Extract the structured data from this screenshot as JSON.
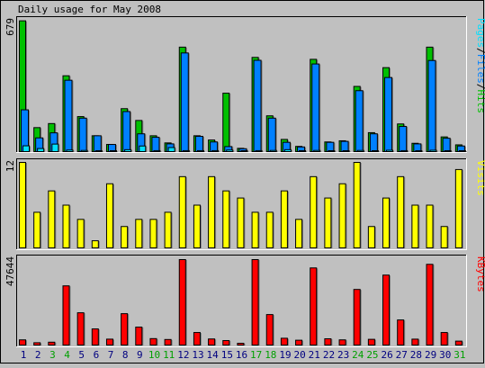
{
  "chart_data": [
    {
      "type": "bar",
      "title": "Daily usage for May 2008",
      "categories": [
        "1",
        "2",
        "3",
        "4",
        "5",
        "6",
        "7",
        "8",
        "9",
        "10",
        "11",
        "12",
        "13",
        "14",
        "15",
        "16",
        "17",
        "18",
        "19",
        "20",
        "21",
        "22",
        "23",
        "24",
        "25",
        "26",
        "27",
        "28",
        "29",
        "30",
        "31"
      ],
      "weekend_days": [
        "3",
        "4",
        "10",
        "11",
        "17",
        "18",
        "24",
        "25",
        "31"
      ],
      "y_max_label": "679",
      "ylim": [
        0,
        679
      ],
      "legend_words": [
        "Pages",
        "Files",
        "Hits"
      ],
      "series": [
        {
          "name": "Hits",
          "color": "#00c000",
          "values": [
            676,
            124,
            145,
            392,
            181,
            82,
            37,
            222,
            161,
            82,
            45,
            540,
            82,
            60,
            302,
            17,
            487,
            185,
            63,
            27,
            477,
            50,
            56,
            337,
            98,
            434,
            143,
            43,
            540,
            76,
            35
          ]
        },
        {
          "name": "Files",
          "color": "#0080ff",
          "values": [
            216,
            71,
            97,
            369,
            173,
            82,
            37,
            207,
            92,
            74,
            40,
            510,
            79,
            50,
            26,
            15,
            472,
            173,
            48,
            24,
            453,
            48,
            53,
            315,
            92,
            383,
            130,
            40,
            471,
            69,
            29
          ]
        },
        {
          "name": "Pages",
          "color": "#00e0ff",
          "values": [
            30,
            16,
            39,
            8,
            6,
            3,
            2,
            10,
            29,
            5,
            21,
            5,
            5,
            5,
            8,
            1,
            5,
            6,
            10,
            2,
            6,
            4,
            4,
            6,
            3,
            7,
            5,
            3,
            7,
            3,
            2
          ]
        }
      ]
    },
    {
      "type": "bar",
      "categories": [
        "1",
        "2",
        "3",
        "4",
        "5",
        "6",
        "7",
        "8",
        "9",
        "10",
        "11",
        "12",
        "13",
        "14",
        "15",
        "16",
        "17",
        "18",
        "19",
        "20",
        "21",
        "22",
        "23",
        "24",
        "25",
        "26",
        "27",
        "28",
        "29",
        "30",
        "31"
      ],
      "y_max_label": "12",
      "ylim": [
        0,
        12
      ],
      "legend_words": [
        "Visits"
      ],
      "series": [
        {
          "name": "Visits",
          "color": "#ffff00",
          "values": [
            12,
            5,
            8,
            6,
            4,
            1,
            9,
            3,
            4,
            4,
            5,
            10,
            6,
            10,
            8,
            7,
            5,
            5,
            8,
            4,
            10,
            7,
            9,
            12,
            3,
            7,
            10,
            6,
            6,
            3,
            11
          ]
        }
      ]
    },
    {
      "type": "bar",
      "categories": [
        "1",
        "2",
        "3",
        "4",
        "5",
        "6",
        "7",
        "8",
        "9",
        "10",
        "11",
        "12",
        "13",
        "14",
        "15",
        "16",
        "17",
        "18",
        "19",
        "20",
        "21",
        "22",
        "23",
        "24",
        "25",
        "26",
        "27",
        "28",
        "29",
        "30",
        "31"
      ],
      "y_max_label": "47644",
      "ylim": [
        0,
        47644
      ],
      "legend_words": [
        "KBytes"
      ],
      "series": [
        {
          "name": "KBytes",
          "color": "#ff0000",
          "values": [
            2900,
            1300,
            1600,
            33000,
            18000,
            9000,
            3300,
            17500,
            10000,
            3600,
            3100,
            47644,
            7000,
            3400,
            2500,
            1000,
            47644,
            17000,
            3800,
            2700,
            43000,
            3500,
            2900,
            31000,
            3200,
            39000,
            14000,
            3300,
            45000,
            7000,
            2200
          ]
        }
      ]
    }
  ]
}
